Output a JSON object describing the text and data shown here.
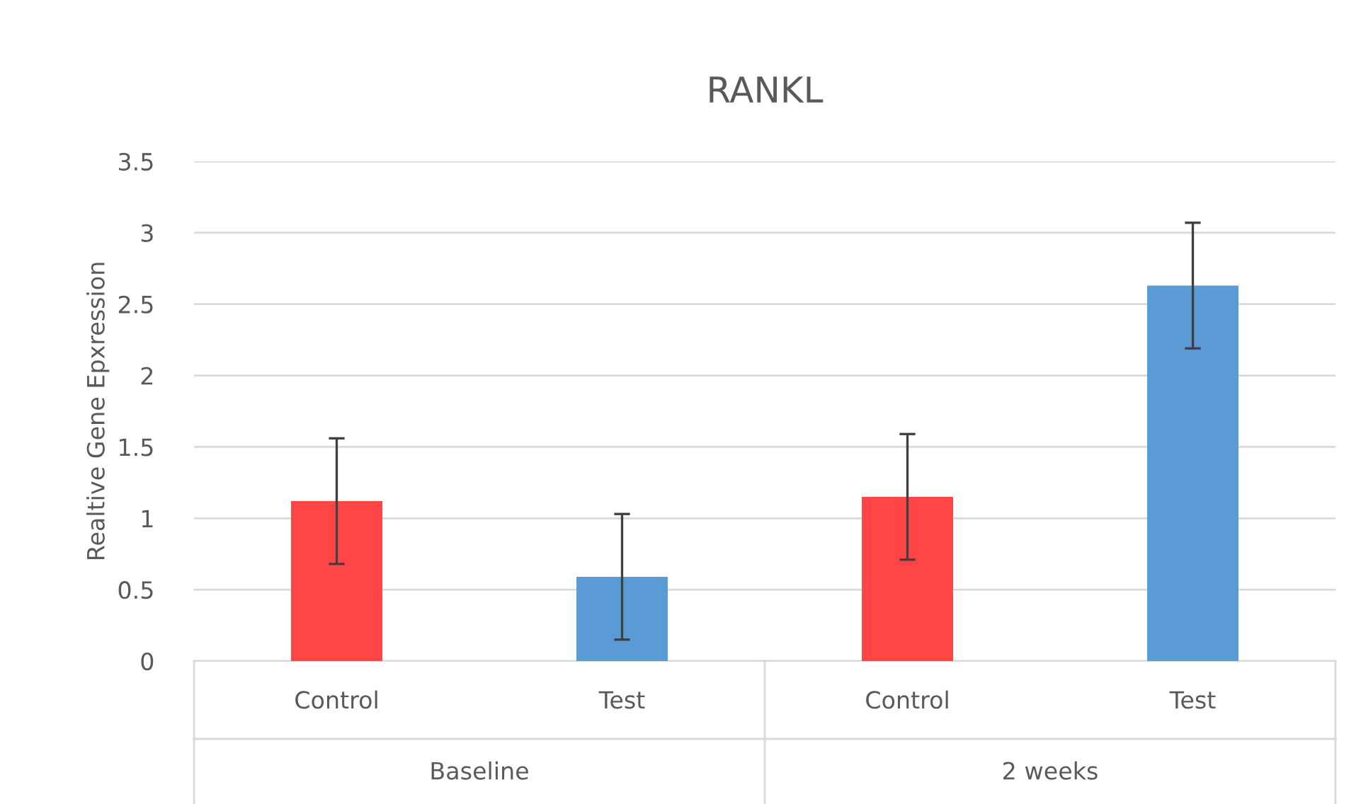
{
  "chart_data": {
    "type": "bar",
    "title": "RANKL",
    "ylabel": "Realtive Gene Epxression",
    "categories": [
      "Control",
      "Test",
      "Control",
      "Test"
    ],
    "values": [
      1.12,
      0.59,
      1.15,
      2.63
    ],
    "colors": [
      "#ff4545",
      "#5b9bd5",
      "#ff4545",
      "#5b9bd5"
    ],
    "errors": [
      0.44,
      0.44,
      0.44,
      0.44
    ],
    "annotations": [
      "Baseline",
      "2 weeks"
    ],
    "ylim": [
      0,
      3.5
    ],
    "yticks": [
      0,
      0.5,
      1,
      1.5,
      2,
      2.5,
      3,
      3.5
    ],
    "grid": "y"
  }
}
